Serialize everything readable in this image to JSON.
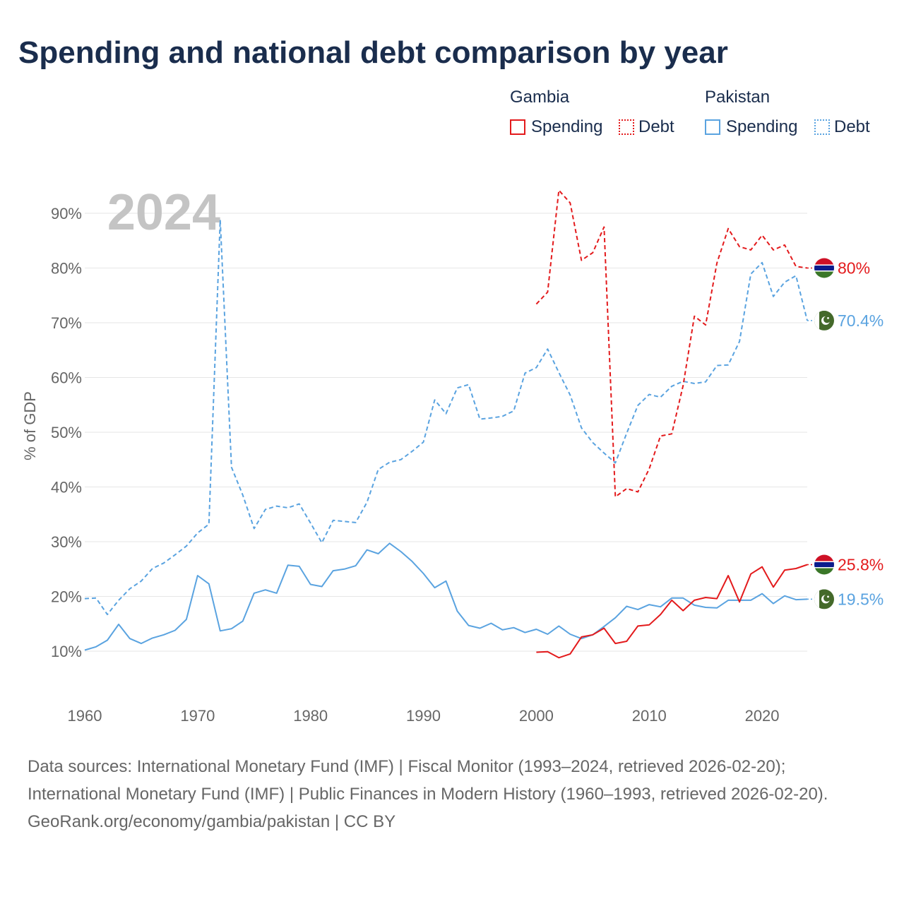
{
  "title": "Spending and national debt comparison by year",
  "legend": {
    "groups": [
      {
        "name": "Gambia",
        "color": "#e31a1c",
        "items": [
          {
            "label": "Spending",
            "style": "solid"
          },
          {
            "label": "Debt",
            "style": "dotted"
          }
        ]
      },
      {
        "name": "Pakistan",
        "color": "#5aa3e0",
        "items": [
          {
            "label": "Spending",
            "style": "solid"
          },
          {
            "label": "Debt",
            "style": "dotted"
          }
        ]
      }
    ]
  },
  "footer": {
    "sources": "Data sources: International Monetary Fund (IMF) | Fiscal Monitor (1993–2024, retrieved 2026-02-20); International Monetary Fund (IMF) | Public Finances in Modern History (1960–1993, retrieved 2026-02-20).",
    "credit": "GeoRank.org/economy/gambia/pakistan | CC BY"
  },
  "chart_data": {
    "type": "line",
    "year_label": "2024",
    "ylabel": "% of GDP",
    "xlim": [
      1960,
      2024
    ],
    "ylim": [
      0,
      100
    ],
    "x_ticks": [
      1960,
      1970,
      1980,
      1990,
      2000,
      2010,
      2020
    ],
    "y_ticks": [
      10,
      20,
      30,
      40,
      50,
      60,
      70,
      80,
      90
    ],
    "y_tick_labels": [
      "10%",
      "20%",
      "30%",
      "40%",
      "50%",
      "60%",
      "70%",
      "80%",
      "90%"
    ],
    "series": [
      {
        "name": "Pakistan Debt",
        "color": "#5aa3e0",
        "dash": true,
        "end_label": "70.4%",
        "end_flag": "pakistan",
        "x": [
          1960,
          1961,
          1962,
          1963,
          1964,
          1965,
          1966,
          1967,
          1968,
          1969,
          1970,
          1971,
          1972,
          1973,
          1974,
          1975,
          1976,
          1977,
          1978,
          1979,
          1980,
          1981,
          1982,
          1983,
          1984,
          1985,
          1986,
          1987,
          1988,
          1989,
          1990,
          1991,
          1992,
          1993,
          1994,
          1995,
          1996,
          1997,
          1998,
          1999,
          2000,
          2001,
          2002,
          2003,
          2004,
          2005,
          2006,
          2007,
          2008,
          2009,
          2010,
          2011,
          2012,
          2013,
          2014,
          2015,
          2016,
          2017,
          2018,
          2019,
          2020,
          2021,
          2022,
          2023,
          2024
        ],
        "values": [
          19.6,
          19.7,
          16.7,
          19.3,
          21.4,
          22.8,
          25.1,
          26.1,
          27.6,
          29.2,
          31.6,
          33.2,
          88.8,
          43.6,
          38.5,
          32.4,
          35.9,
          36.5,
          36.2,
          36.9,
          33.4,
          29.8,
          33.9,
          33.7,
          33.5,
          37.2,
          43.2,
          44.5,
          45.0,
          46.5,
          48.2,
          55.9,
          53.4,
          58.1,
          58.7,
          52.4,
          52.6,
          52.9,
          53.9,
          60.8,
          61.8,
          65.2,
          60.9,
          56.8,
          50.8,
          48.1,
          46.2,
          44.4,
          49.8,
          54.9,
          56.9,
          56.4,
          58.4,
          59.3,
          58.9,
          59.2,
          62.2,
          62.3,
          66.6,
          78.9,
          81.0,
          74.8,
          77.4,
          78.6,
          70.4
        ]
      },
      {
        "name": "Pakistan Spending",
        "color": "#5aa3e0",
        "dash": false,
        "end_label": "19.5%",
        "end_flag": "pakistan",
        "x": [
          1960,
          1961,
          1962,
          1963,
          1964,
          1965,
          1966,
          1967,
          1968,
          1969,
          1970,
          1971,
          1972,
          1973,
          1974,
          1975,
          1976,
          1977,
          1978,
          1979,
          1980,
          1981,
          1982,
          1983,
          1984,
          1985,
          1986,
          1987,
          1988,
          1989,
          1990,
          1991,
          1992,
          1993,
          1994,
          1995,
          1996,
          1997,
          1998,
          1999,
          2000,
          2001,
          2002,
          2003,
          2004,
          2005,
          2006,
          2007,
          2008,
          2009,
          2010,
          2011,
          2012,
          2013,
          2014,
          2015,
          2016,
          2017,
          2018,
          2019,
          2020,
          2021,
          2022,
          2023,
          2024
        ],
        "values": [
          10.2,
          10.8,
          12.0,
          14.9,
          12.3,
          11.4,
          12.4,
          13.0,
          13.8,
          15.8,
          23.8,
          22.3,
          13.7,
          14.1,
          15.5,
          20.6,
          21.2,
          20.6,
          25.7,
          25.5,
          22.2,
          21.8,
          24.7,
          25.0,
          25.6,
          28.5,
          27.8,
          29.7,
          28.2,
          26.4,
          24.2,
          21.6,
          22.8,
          17.3,
          14.7,
          14.2,
          15.1,
          13.9,
          14.3,
          13.4,
          14.0,
          13.1,
          14.6,
          13.1,
          12.3,
          13.0,
          14.5,
          16.1,
          18.2,
          17.6,
          18.5,
          18.1,
          19.7,
          19.7,
          18.4,
          18.0,
          17.9,
          19.3,
          19.3,
          19.3,
          20.5,
          18.7,
          20.1,
          19.4,
          19.5
        ]
      },
      {
        "name": "Gambia Debt",
        "color": "#e31a1c",
        "dash": true,
        "end_label": "80%",
        "end_flag": "gambia",
        "x": [
          2000,
          2001,
          2002,
          2003,
          2004,
          2005,
          2006,
          2007,
          2008,
          2009,
          2010,
          2011,
          2012,
          2013,
          2014,
          2015,
          2016,
          2017,
          2018,
          2019,
          2020,
          2021,
          2022,
          2023,
          2024
        ],
        "values": [
          73.4,
          75.6,
          94.2,
          91.9,
          81.4,
          82.8,
          87.5,
          38.2,
          39.7,
          39.1,
          43.3,
          49.3,
          49.7,
          58.5,
          71.2,
          69.6,
          80.9,
          87.2,
          83.9,
          83.3,
          86.0,
          83.3,
          84.2,
          80.3,
          80.0
        ]
      },
      {
        "name": "Gambia Spending",
        "color": "#e31a1c",
        "dash": false,
        "end_label": "25.8%",
        "end_flag": "gambia",
        "x": [
          2000,
          2001,
          2002,
          2003,
          2004,
          2005,
          2006,
          2007,
          2008,
          2009,
          2010,
          2011,
          2012,
          2013,
          2014,
          2015,
          2016,
          2017,
          2018,
          2019,
          2020,
          2021,
          2022,
          2023,
          2024
        ],
        "values": [
          9.8,
          9.9,
          8.8,
          9.5,
          12.6,
          13.0,
          14.2,
          11.4,
          11.8,
          14.6,
          14.8,
          16.7,
          19.3,
          17.4,
          19.3,
          19.8,
          19.6,
          23.8,
          19.0,
          24.1,
          25.4,
          21.7,
          24.8,
          25.1,
          25.8
        ]
      }
    ]
  }
}
